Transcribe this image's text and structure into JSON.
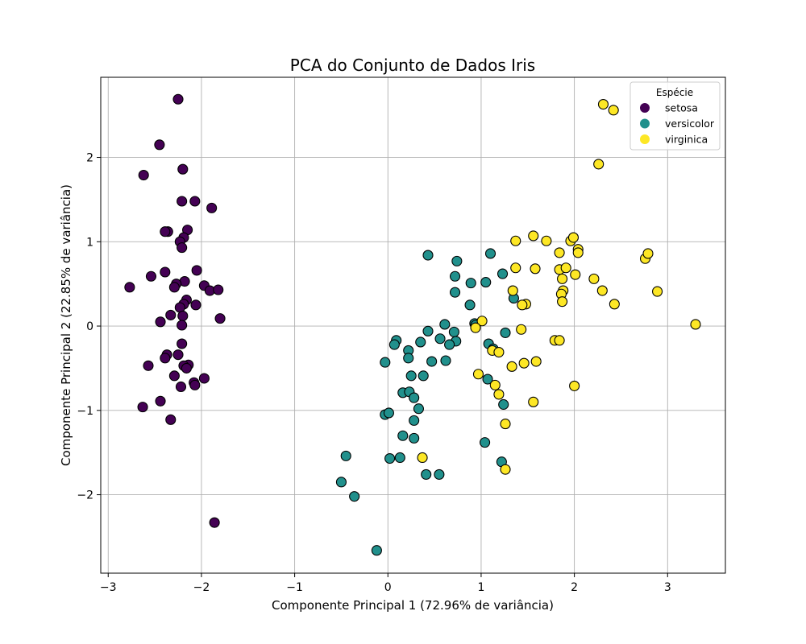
{
  "chart_data": {
    "type": "scatter",
    "title": "PCA do Conjunto de Dados Iris",
    "xlabel": "Componente Principal 1 (72.96% de variância)",
    "ylabel": "Componente Principal 2 (22.85% de variância)",
    "xlim": [
      -3.08,
      3.62
    ],
    "ylim": [
      -2.93,
      2.95
    ],
    "xticks": [
      -3,
      -2,
      -1,
      0,
      1,
      2,
      3
    ],
    "xtick_labels": [
      "−3",
      "−2",
      "−1",
      "0",
      "1",
      "2",
      "3"
    ],
    "yticks": [
      -2,
      -1,
      0,
      1,
      2
    ],
    "ytick_labels": [
      "−2",
      "−1",
      "0",
      "1",
      "2"
    ],
    "grid": true,
    "legend": {
      "title": "Espécie",
      "placement": "top-right"
    },
    "series": [
      {
        "name": "setosa",
        "color": "#440154",
        "points": [
          [
            -2.25,
            2.69
          ],
          [
            -2.45,
            2.15
          ],
          [
            -2.62,
            1.79
          ],
          [
            -2.2,
            1.86
          ],
          [
            -2.21,
            1.48
          ],
          [
            -2.07,
            1.48
          ],
          [
            -1.89,
            1.4
          ],
          [
            -2.15,
            1.14
          ],
          [
            -2.36,
            1.12
          ],
          [
            -2.39,
            1.12
          ],
          [
            -2.19,
            1.05
          ],
          [
            -2.23,
            1.0
          ],
          [
            -2.21,
            0.93
          ],
          [
            -2.05,
            0.66
          ],
          [
            -2.39,
            0.64
          ],
          [
            -2.54,
            0.59
          ],
          [
            -2.18,
            0.53
          ],
          [
            -2.27,
            0.5
          ],
          [
            -2.29,
            0.46
          ],
          [
            -1.97,
            0.48
          ],
          [
            -1.91,
            0.42
          ],
          [
            -1.82,
            0.43
          ],
          [
            -2.77,
            0.46
          ],
          [
            -2.16,
            0.31
          ],
          [
            -2.19,
            0.26
          ],
          [
            -2.06,
            0.25
          ],
          [
            -2.23,
            0.22
          ],
          [
            -2.33,
            0.13
          ],
          [
            -2.2,
            0.12
          ],
          [
            -1.8,
            0.09
          ],
          [
            -2.44,
            0.05
          ],
          [
            -2.21,
            0.01
          ],
          [
            -2.21,
            -0.21
          ],
          [
            -2.37,
            -0.34
          ],
          [
            -2.25,
            -0.34
          ],
          [
            -2.39,
            -0.38
          ],
          [
            -2.14,
            -0.46
          ],
          [
            -2.19,
            -0.47
          ],
          [
            -2.16,
            -0.5
          ],
          [
            -2.57,
            -0.47
          ],
          [
            -2.29,
            -0.59
          ],
          [
            -1.97,
            -0.62
          ],
          [
            -2.08,
            -0.67
          ],
          [
            -2.07,
            -0.7
          ],
          [
            -2.22,
            -0.72
          ],
          [
            -2.44,
            -0.89
          ],
          [
            -2.63,
            -0.96
          ],
          [
            -2.33,
            -1.11
          ],
          [
            -1.86,
            -2.33
          ]
        ]
      },
      {
        "name": "versicolor",
        "color": "#21908c",
        "points": [
          [
            0.43,
            0.84
          ],
          [
            1.1,
            0.86
          ],
          [
            0.74,
            0.77
          ],
          [
            1.23,
            0.62
          ],
          [
            0.72,
            0.59
          ],
          [
            0.89,
            0.51
          ],
          [
            1.05,
            0.52
          ],
          [
            0.72,
            0.4
          ],
          [
            1.35,
            0.33
          ],
          [
            0.88,
            0.25
          ],
          [
            0.93,
            0.03
          ],
          [
            0.94,
            0.01
          ],
          [
            0.61,
            0.02
          ],
          [
            0.71,
            -0.07
          ],
          [
            0.43,
            -0.06
          ],
          [
            0.56,
            -0.15
          ],
          [
            0.73,
            -0.18
          ],
          [
            0.66,
            -0.22
          ],
          [
            1.26,
            -0.08
          ],
          [
            1.08,
            -0.21
          ],
          [
            1.13,
            -0.27
          ],
          [
            0.09,
            -0.17
          ],
          [
            0.07,
            -0.22
          ],
          [
            0.35,
            -0.19
          ],
          [
            0.22,
            -0.29
          ],
          [
            0.22,
            -0.38
          ],
          [
            -0.03,
            -0.43
          ],
          [
            0.47,
            -0.42
          ],
          [
            0.62,
            -0.41
          ],
          [
            0.25,
            -0.59
          ],
          [
            0.38,
            -0.59
          ],
          [
            1.07,
            -0.63
          ],
          [
            0.16,
            -0.79
          ],
          [
            0.23,
            -0.78
          ],
          [
            0.28,
            -0.85
          ],
          [
            0.33,
            -0.98
          ],
          [
            1.24,
            -0.93
          ],
          [
            -0.03,
            -1.05
          ],
          [
            0.01,
            -1.03
          ],
          [
            0.28,
            -1.12
          ],
          [
            0.16,
            -1.3
          ],
          [
            0.28,
            -1.33
          ],
          [
            1.04,
            -1.38
          ],
          [
            -0.45,
            -1.54
          ],
          [
            0.02,
            -1.57
          ],
          [
            0.13,
            -1.56
          ],
          [
            -0.5,
            -1.85
          ],
          [
            1.22,
            -1.61
          ],
          [
            0.41,
            -1.76
          ],
          [
            0.55,
            -1.76
          ],
          [
            -0.36,
            -2.02
          ],
          [
            -0.12,
            -2.66
          ]
        ]
      },
      {
        "name": "virginica",
        "color": "#fde725",
        "points": [
          [
            2.31,
            2.63
          ],
          [
            2.42,
            2.56
          ],
          [
            2.26,
            1.92
          ],
          [
            1.56,
            1.07
          ],
          [
            1.37,
            1.01
          ],
          [
            1.7,
            1.01
          ],
          [
            1.96,
            1.01
          ],
          [
            1.99,
            1.05
          ],
          [
            2.04,
            0.91
          ],
          [
            2.04,
            0.87
          ],
          [
            1.84,
            0.87
          ],
          [
            2.76,
            0.8
          ],
          [
            2.79,
            0.86
          ],
          [
            1.37,
            0.69
          ],
          [
            1.58,
            0.68
          ],
          [
            1.84,
            0.67
          ],
          [
            1.91,
            0.69
          ],
          [
            2.01,
            0.61
          ],
          [
            2.21,
            0.56
          ],
          [
            1.87,
            0.56
          ],
          [
            1.34,
            0.42
          ],
          [
            1.88,
            0.42
          ],
          [
            1.86,
            0.38
          ],
          [
            2.3,
            0.42
          ],
          [
            2.89,
            0.41
          ],
          [
            1.87,
            0.29
          ],
          [
            1.48,
            0.26
          ],
          [
            1.44,
            0.25
          ],
          [
            2.43,
            0.26
          ],
          [
            3.3,
            0.02
          ],
          [
            1.01,
            0.06
          ],
          [
            0.94,
            -0.02
          ],
          [
            1.43,
            -0.04
          ],
          [
            1.79,
            -0.17
          ],
          [
            1.84,
            -0.17
          ],
          [
            1.12,
            -0.29
          ],
          [
            1.19,
            -0.31
          ],
          [
            1.46,
            -0.44
          ],
          [
            1.59,
            -0.42
          ],
          [
            1.33,
            -0.48
          ],
          [
            0.97,
            -0.57
          ],
          [
            1.15,
            -0.7
          ],
          [
            2.0,
            -0.71
          ],
          [
            1.19,
            -0.81
          ],
          [
            1.56,
            -0.9
          ],
          [
            1.26,
            -1.16
          ],
          [
            0.37,
            -1.56
          ],
          [
            1.26,
            -1.7
          ]
        ]
      }
    ]
  }
}
